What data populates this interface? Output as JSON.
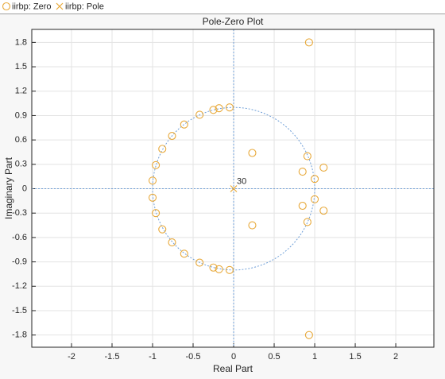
{
  "chart_data": {
    "type": "scatter",
    "title": "Pole-Zero Plot",
    "xlabel": "Real Part",
    "ylabel": "Imaginary Part",
    "xlim": [
      -2.49,
      2.47
    ],
    "ylim": [
      -1.95,
      1.96
    ],
    "xticks": [
      -2,
      -1.5,
      -1,
      -0.5,
      0,
      0.5,
      1,
      1.5,
      2
    ],
    "yticks": [
      -1.8,
      -1.5,
      -1.2,
      -0.9,
      -0.6,
      -0.3,
      0,
      0.3,
      0.6,
      0.9,
      1.2,
      1.5,
      1.8
    ],
    "grid": true,
    "unit_circle": true,
    "series": [
      {
        "name": "iirbp: Zero",
        "color": "#e8a93a",
        "marker": "o",
        "x": [
          0.93,
          0.93,
          0.23,
          0.23,
          1.11,
          1.11,
          0.85,
          0.85,
          0.91,
          0.91,
          1.0,
          1.0,
          -0.05,
          -0.18,
          -0.25,
          -0.42,
          -0.61,
          -0.76,
          -0.88,
          -0.96,
          -1.0,
          -1.0,
          -0.96,
          -0.88,
          -0.76,
          -0.61,
          -0.42,
          -0.25,
          -0.18,
          -0.05
        ],
        "values": [
          1.8,
          -1.8,
          0.44,
          -0.45,
          0.26,
          -0.27,
          0.21,
          -0.21,
          0.4,
          -0.41,
          0.12,
          -0.13,
          1.0,
          0.99,
          0.97,
          0.91,
          0.79,
          0.65,
          0.49,
          0.29,
          0.1,
          -0.11,
          -0.3,
          -0.5,
          -0.66,
          -0.8,
          -0.91,
          -0.97,
          -0.99,
          -1.0
        ]
      },
      {
        "name": "iirbp: Pole",
        "color": "#e8a93a",
        "marker": "x",
        "x": [
          0
        ],
        "values": [
          0
        ],
        "multiplicity": [
          30
        ]
      }
    ]
  }
}
